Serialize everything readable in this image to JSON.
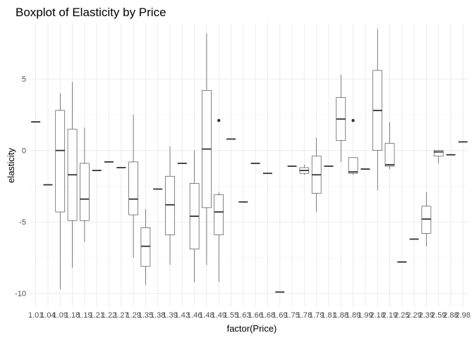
{
  "chart_data": {
    "type": "boxplot",
    "title": "Boxplot of Elasticity by Price",
    "xlabel": "factor(Price)",
    "ylabel": "elasticity",
    "ylim": [
      -10.9,
      8.9
    ],
    "yticks": [
      -10,
      -5,
      0,
      5
    ],
    "grid": true,
    "legend": "none",
    "categories": [
      "1.01",
      "1.04",
      "1.09",
      "1.18",
      "1.19",
      "1.21",
      "1.22",
      "1.27",
      "1.29",
      "1.35",
      "1.38",
      "1.39",
      "1.43",
      "1.46",
      "1.48",
      "1.49",
      "1.55",
      "1.63",
      "1.66",
      "1.68",
      "1.69",
      "1.75",
      "1.78",
      "1.79",
      "1.81",
      "1.88",
      "1.89",
      "1.99",
      "2.18",
      "2.19",
      "2.25",
      "2.29",
      "2.39",
      "2.59",
      "2.88",
      "2.98"
    ],
    "boxes": [
      {
        "min": 2.0,
        "q1": 2.0,
        "median": 2.0,
        "q3": 2.0,
        "max": 2.0,
        "outliers": []
      },
      {
        "min": -2.4,
        "q1": -2.4,
        "median": -2.4,
        "q3": -2.4,
        "max": -2.4,
        "outliers": []
      },
      {
        "min": -9.7,
        "q1": -4.3,
        "median": 0.0,
        "q3": 2.8,
        "max": 4.0,
        "outliers": []
      },
      {
        "min": -8.2,
        "q1": -4.9,
        "median": -1.7,
        "q3": 1.5,
        "max": 4.8,
        "outliers": []
      },
      {
        "min": -6.4,
        "q1": -4.9,
        "median": -3.4,
        "q3": -0.9,
        "max": 1.6,
        "outliers": []
      },
      {
        "min": -1.4,
        "q1": -1.4,
        "median": -1.4,
        "q3": -1.4,
        "max": -1.4,
        "outliers": []
      },
      {
        "min": -0.8,
        "q1": -0.8,
        "median": -0.8,
        "q3": -0.8,
        "max": -0.8,
        "outliers": []
      },
      {
        "min": -1.2,
        "q1": -1.2,
        "median": -1.2,
        "q3": -1.2,
        "max": -1.2,
        "outliers": []
      },
      {
        "min": -7.5,
        "q1": -4.5,
        "median": -3.4,
        "q3": -0.8,
        "max": 2.5,
        "outliers": []
      },
      {
        "min": -9.4,
        "q1": -8.1,
        "median": -6.7,
        "q3": -5.4,
        "max": -4.1,
        "outliers": []
      },
      {
        "min": -2.7,
        "q1": -2.7,
        "median": -2.7,
        "q3": -2.7,
        "max": -2.7,
        "outliers": []
      },
      {
        "min": -8.0,
        "q1": -5.9,
        "median": -3.8,
        "q3": -1.8,
        "max": 0.3,
        "outliers": []
      },
      {
        "min": -0.9,
        "q1": -0.9,
        "median": -0.9,
        "q3": -0.9,
        "max": -0.9,
        "outliers": []
      },
      {
        "min": -9.2,
        "q1": -6.9,
        "median": -4.6,
        "q3": -2.3,
        "max": 0.0,
        "outliers": []
      },
      {
        "min": -8.0,
        "q1": -4.0,
        "median": 0.1,
        "q3": 4.2,
        "max": 8.2,
        "outliers": []
      },
      {
        "min": -9.2,
        "q1": -5.9,
        "median": -4.3,
        "q3": -3.1,
        "max": -2.9,
        "outliers": [
          2.1
        ]
      },
      {
        "min": 0.8,
        "q1": 0.8,
        "median": 0.8,
        "q3": 0.8,
        "max": 0.8,
        "outliers": []
      },
      {
        "min": -3.6,
        "q1": -3.6,
        "median": -3.6,
        "q3": -3.6,
        "max": -3.6,
        "outliers": []
      },
      {
        "min": -0.9,
        "q1": -0.9,
        "median": -0.9,
        "q3": -0.9,
        "max": -0.9,
        "outliers": []
      },
      {
        "min": -1.6,
        "q1": -1.6,
        "median": -1.6,
        "q3": -1.6,
        "max": -1.6,
        "outliers": []
      },
      {
        "min": -9.9,
        "q1": -9.9,
        "median": -9.9,
        "q3": -9.9,
        "max": -9.9,
        "outliers": []
      },
      {
        "min": -1.1,
        "q1": -1.1,
        "median": -1.1,
        "q3": -1.1,
        "max": -1.1,
        "outliers": []
      },
      {
        "min": -1.7,
        "q1": -1.6,
        "median": -1.4,
        "q3": -1.2,
        "max": -1.0,
        "outliers": []
      },
      {
        "min": -4.3,
        "q1": -3.0,
        "median": -1.7,
        "q3": -0.4,
        "max": 0.9,
        "outliers": []
      },
      {
        "min": -1.1,
        "q1": -1.1,
        "median": -1.1,
        "q3": -1.1,
        "max": -1.1,
        "outliers": []
      },
      {
        "min": -0.8,
        "q1": 0.7,
        "median": 2.2,
        "q3": 3.7,
        "max": 5.3,
        "outliers": []
      },
      {
        "min": -1.7,
        "q1": -1.6,
        "median": -1.5,
        "q3": -0.5,
        "max": -0.5,
        "outliers": [
          2.1
        ]
      },
      {
        "min": -1.3,
        "q1": -1.3,
        "median": -1.3,
        "q3": -1.3,
        "max": -1.3,
        "outliers": []
      },
      {
        "min": -2.8,
        "q1": 0.0,
        "median": 2.8,
        "q3": 5.6,
        "max": 8.5,
        "outliers": []
      },
      {
        "min": -1.3,
        "q1": -1.1,
        "median": -1.0,
        "q3": 0.5,
        "max": 2.0,
        "outliers": []
      },
      {
        "min": -7.8,
        "q1": -7.8,
        "median": -7.8,
        "q3": -7.8,
        "max": -7.8,
        "outliers": []
      },
      {
        "min": -6.2,
        "q1": -6.2,
        "median": -6.2,
        "q3": -6.2,
        "max": -6.2,
        "outliers": []
      },
      {
        "min": -6.7,
        "q1": -5.8,
        "median": -4.8,
        "q3": -3.9,
        "max": -2.9,
        "outliers": []
      },
      {
        "min": -0.9,
        "q1": -0.4,
        "median": -0.1,
        "q3": 0.0,
        "max": 0.0,
        "outliers": []
      },
      {
        "min": -0.3,
        "q1": -0.3,
        "median": -0.3,
        "q3": -0.3,
        "max": -0.3,
        "outliers": []
      },
      {
        "min": 0.6,
        "q1": 0.6,
        "median": 0.6,
        "q3": 0.6,
        "max": 0.6,
        "outliers": []
      }
    ]
  }
}
